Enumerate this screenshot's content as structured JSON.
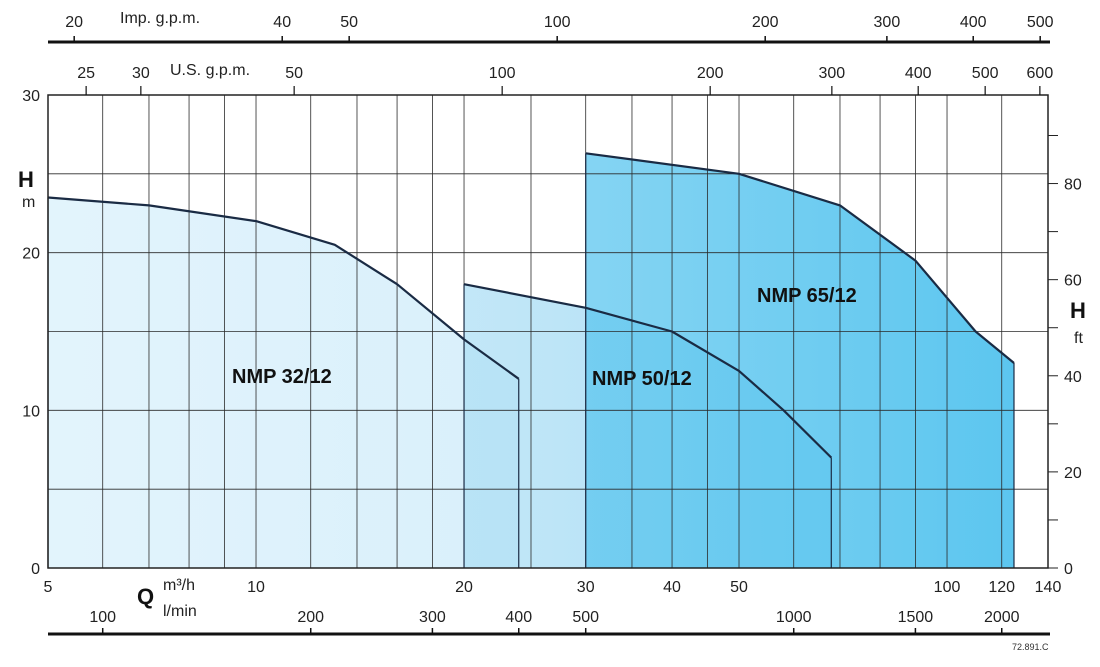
{
  "chart_data": {
    "type": "area",
    "x_axis_bottom": {
      "name": "Q",
      "unit": "m³/h",
      "scale": "log",
      "range": [
        5,
        140
      ],
      "ticks": [
        "5",
        "10",
        "20",
        "30",
        "40",
        "50",
        "100",
        "120",
        "140"
      ]
    },
    "x_axis_lmin": {
      "unit": "l/min",
      "ticks": [
        "100",
        "200",
        "300",
        "400",
        "500",
        "1000",
        "1500",
        "2000"
      ]
    },
    "x_axis_usgpm": {
      "unit": "U.S. g.p.m.",
      "ticks": [
        "25",
        "30",
        "50",
        "100",
        "200",
        "300",
        "400",
        "500",
        "600"
      ]
    },
    "x_axis_impgpm": {
      "unit": "Imp. g.p.m.",
      "ticks": [
        "20",
        "40",
        "50",
        "100",
        "200",
        "300",
        "400",
        "500"
      ]
    },
    "y_axis_left": {
      "name": "H",
      "unit": "m",
      "range": [
        0,
        30
      ],
      "ticks": [
        "0",
        "10",
        "20",
        "30"
      ]
    },
    "y_axis_right": {
      "name": "H",
      "unit": "ft",
      "ticks": [
        "0",
        "20",
        "40",
        "60",
        "80"
      ]
    },
    "grid": true,
    "series": [
      {
        "name": "NMP 32/12",
        "color": "#d9f0fb",
        "points": [
          [
            5,
            23.5
          ],
          [
            7,
            23.0
          ],
          [
            10,
            22.0
          ],
          [
            13,
            20.5
          ],
          [
            16,
            18.0
          ],
          [
            20,
            14.5
          ],
          [
            24,
            12.0
          ]
        ]
      },
      {
        "name": "NMP 50/12",
        "color": "#aedff5",
        "points": [
          [
            20,
            18.0
          ],
          [
            30,
            16.5
          ],
          [
            40,
            15.0
          ],
          [
            50,
            12.5
          ],
          [
            58,
            10.0
          ],
          [
            68,
            7.0
          ]
        ]
      },
      {
        "name": "NMP 65/12",
        "color": "#5cc6ef",
        "points": [
          [
            30,
            26.3
          ],
          [
            50,
            25.0
          ],
          [
            70,
            23.0
          ],
          [
            90,
            19.5
          ],
          [
            110,
            15.0
          ],
          [
            125,
            13.0
          ]
        ]
      }
    ],
    "code": "72.891.C"
  }
}
